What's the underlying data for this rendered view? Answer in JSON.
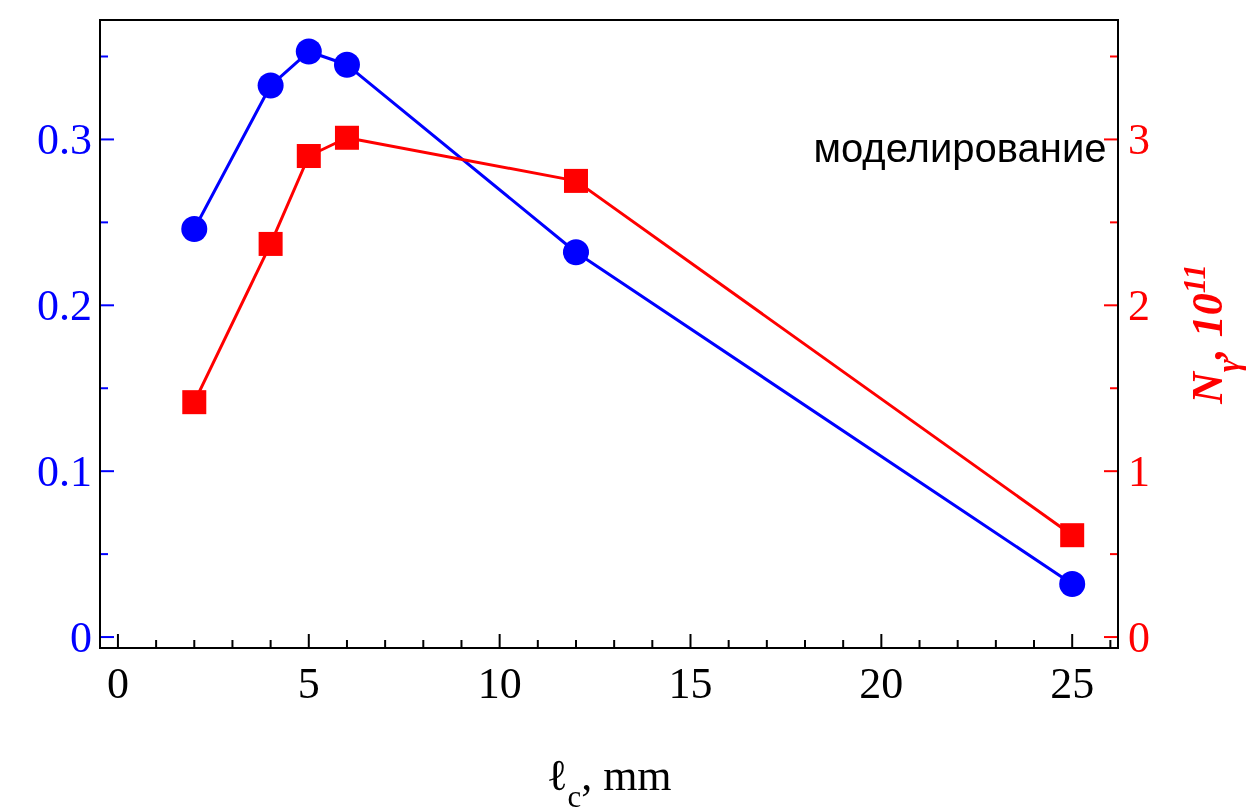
{
  "chart_data": {
    "type": "line",
    "xlabel": "ℓ$_{c}$, mm",
    "y2label": "N$_{γ}$, 10$^{11}$",
    "annotations": [
      "моделирование"
    ],
    "x": [
      2,
      4,
      5,
      6,
      12,
      25
    ],
    "xlim": [
      -0.47,
      26.2
    ],
    "xticks": [
      0,
      5,
      10,
      15,
      20,
      25,
      {
        "value": 1,
        "label": null
      },
      {
        "value": 2,
        "label": null
      },
      {
        "value": 3,
        "label": null
      },
      {
        "value": 4,
        "label": null
      },
      {
        "value": 6,
        "label": null
      },
      {
        "value": 7,
        "label": null
      },
      {
        "value": 8,
        "label": null
      },
      {
        "value": 9,
        "label": null
      },
      {
        "value": 11,
        "label": null
      },
      {
        "value": 12,
        "label": null
      },
      {
        "value": 13,
        "label": null
      },
      {
        "value": 14,
        "label": null
      },
      {
        "value": 16,
        "label": null
      },
      {
        "value": 17,
        "label": null
      },
      {
        "value": 18,
        "label": null
      },
      {
        "value": 19,
        "label": null
      },
      {
        "value": 21,
        "label": null
      },
      {
        "value": 22,
        "label": null
      },
      {
        "value": 23,
        "label": null
      },
      {
        "value": 24,
        "label": null
      },
      {
        "value": 26,
        "label": null
      }
    ],
    "ylim": [
      -0.0066,
      0.372
    ],
    "yticks": [
      0,
      0.1,
      0.2,
      0.3,
      {
        "value": 0.05,
        "label": null
      },
      {
        "value": 0.15,
        "label": null
      },
      {
        "value": 0.25,
        "label": null
      },
      {
        "value": 0.35,
        "label": null
      }
    ],
    "y2lim": [
      -0.066,
      3.72
    ],
    "y2ticks": [
      0,
      1,
      2,
      3,
      {
        "value": 0.5,
        "label": null
      },
      {
        "value": 1.5,
        "label": null
      },
      {
        "value": 2.5,
        "label": null
      },
      {
        "value": 3.5,
        "label": null
      }
    ],
    "series": [
      {
        "color": "#0000ff",
        "marker": "circle",
        "values": [
          0.246,
          0.3325,
          0.353,
          0.345,
          0.232,
          0.032
        ]
      },
      {
        "color": "#ff0000",
        "marker": "square",
        "axis": "y2",
        "values": [
          1.416,
          2.37,
          2.9,
          3.01,
          2.75,
          0.614
        ]
      }
    ]
  }
}
